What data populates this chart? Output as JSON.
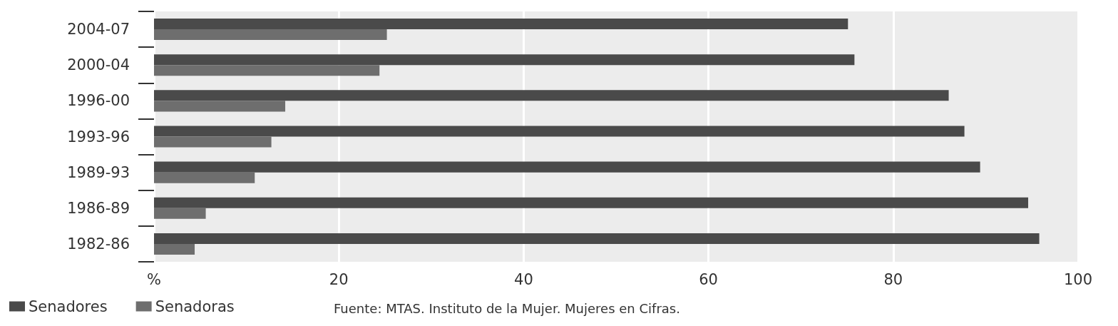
{
  "chart_data": {
    "type": "bar",
    "orientation": "horizontal",
    "categories": [
      "2004-07",
      "2000-04",
      "1996-00",
      "1993-96",
      "1989-93",
      "1986-89",
      "1982-86"
    ],
    "series": [
      {
        "name": "Senadores",
        "color": "#4a4a4a",
        "values": [
          75.1,
          75.8,
          86.0,
          87.7,
          89.4,
          94.6,
          95.8
        ]
      },
      {
        "name": "Senadoras",
        "color": "#6e6e6e",
        "values": [
          25.2,
          24.4,
          14.2,
          12.7,
          10.9,
          5.6,
          4.4
        ]
      }
    ],
    "xlim": [
      0,
      100
    ],
    "xticks": [
      {
        "value": 0,
        "label": "%"
      },
      20,
      40,
      60,
      80,
      100
    ],
    "grid": "x",
    "legend": "bottom left",
    "annotations": [
      "Fuente: MTAS. Instituto de la Mujer. Mujeres en Cifras."
    ]
  }
}
